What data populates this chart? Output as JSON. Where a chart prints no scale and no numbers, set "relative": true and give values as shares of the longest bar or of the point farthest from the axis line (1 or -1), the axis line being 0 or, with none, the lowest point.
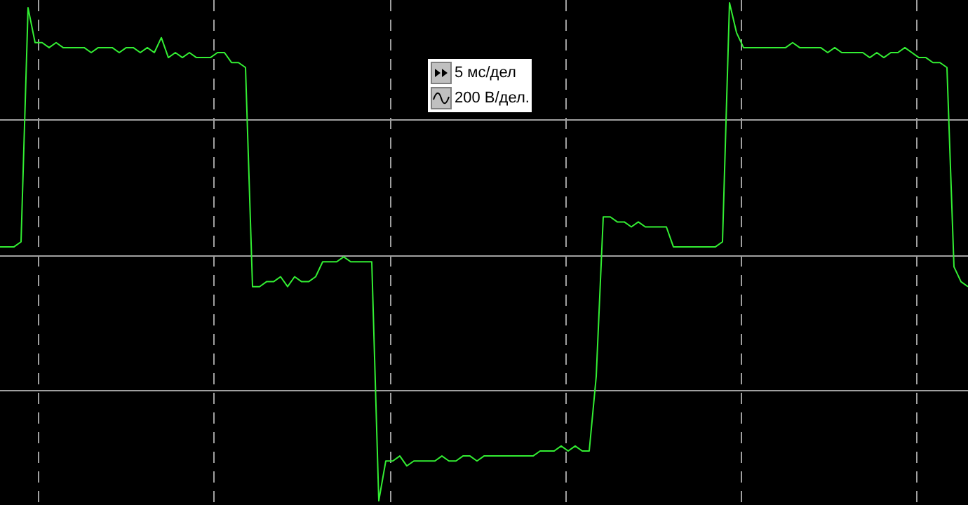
{
  "chart_data": {
    "type": "line",
    "relative": true,
    "grid": true,
    "marker": "none",
    "line_style": "solid",
    "annotations": [
      "5 мс/дел",
      "200 В/дел."
    ],
    "categories": [
      null,
      null,
      null,
      null,
      null,
      null,
      null,
      null,
      null,
      null,
      null,
      null,
      null,
      null,
      null,
      null,
      null,
      null,
      null,
      null,
      null,
      null,
      null,
      null,
      null,
      null,
      null,
      null,
      null,
      null,
      null,
      null,
      null,
      null,
      null,
      null,
      null,
      null,
      null,
      null,
      null,
      null,
      null,
      null,
      null,
      null,
      null,
      null,
      null,
      null,
      null,
      null,
      null,
      null,
      null,
      null,
      null,
      null,
      null,
      null,
      null,
      null,
      null,
      null,
      null,
      null,
      null,
      null,
      null,
      null,
      null,
      null,
      null,
      null,
      null,
      null,
      null,
      null,
      null,
      null,
      null,
      null,
      null,
      null,
      null,
      null,
      null,
      null,
      null,
      null,
      null,
      null,
      null,
      null,
      null,
      null,
      null,
      null,
      null,
      null,
      null,
      null,
      null,
      null,
      null,
      null,
      null,
      null,
      null,
      null,
      null,
      null,
      null,
      null,
      null,
      null,
      null,
      null,
      null,
      null,
      null,
      null,
      null,
      null,
      null,
      null,
      null,
      null,
      null,
      null,
      null,
      null,
      null,
      null,
      null,
      null,
      null,
      null,
      null
    ],
    "series": [
      {
        "color": "#33ee33",
        "values": [
          0.51,
          0.51,
          0.51,
          0.52,
          0.99,
          0.92,
          0.92,
          0.91,
          0.92,
          0.91,
          0.91,
          0.91,
          0.91,
          0.9,
          0.91,
          0.91,
          0.91,
          0.9,
          0.91,
          0.91,
          0.9,
          0.91,
          0.9,
          0.93,
          0.89,
          0.9,
          0.89,
          0.9,
          0.89,
          0.89,
          0.89,
          0.9,
          0.9,
          0.88,
          0.88,
          0.87,
          0.43,
          0.43,
          0.44,
          0.44,
          0.45,
          0.43,
          0.45,
          0.44,
          0.44,
          0.45,
          0.48,
          0.48,
          0.48,
          0.49,
          0.48,
          0.48,
          0.48,
          0.48,
          0,
          0.08,
          0.08,
          0.09,
          0.07,
          0.08,
          0.08,
          0.08,
          0.08,
          0.09,
          0.08,
          0.08,
          0.09,
          0.09,
          0.08,
          0.09,
          0.09,
          0.09,
          0.09,
          0.09,
          0.09,
          0.09,
          0.09,
          0.1,
          0.1,
          0.1,
          0.11,
          0.1,
          0.11,
          0.1,
          0.1,
          0.25,
          0.57,
          0.57,
          0.56,
          0.56,
          0.55,
          0.56,
          0.55,
          0.55,
          0.55,
          0.55,
          0.51,
          0.51,
          0.51,
          0.51,
          0.51,
          0.51,
          0.51,
          0.52,
          1,
          0.94,
          0.91,
          0.91,
          0.91,
          0.91,
          0.91,
          0.91,
          0.91,
          0.92,
          0.91,
          0.91,
          0.91,
          0.91,
          0.9,
          0.91,
          0.9,
          0.9,
          0.9,
          0.9,
          0.89,
          0.9,
          0.89,
          0.9,
          0.9,
          0.91,
          0.9,
          0.89,
          0.89,
          0.88,
          0.88,
          0.87,
          0.47,
          0.44,
          0.43
        ]
      }
    ]
  }
}
